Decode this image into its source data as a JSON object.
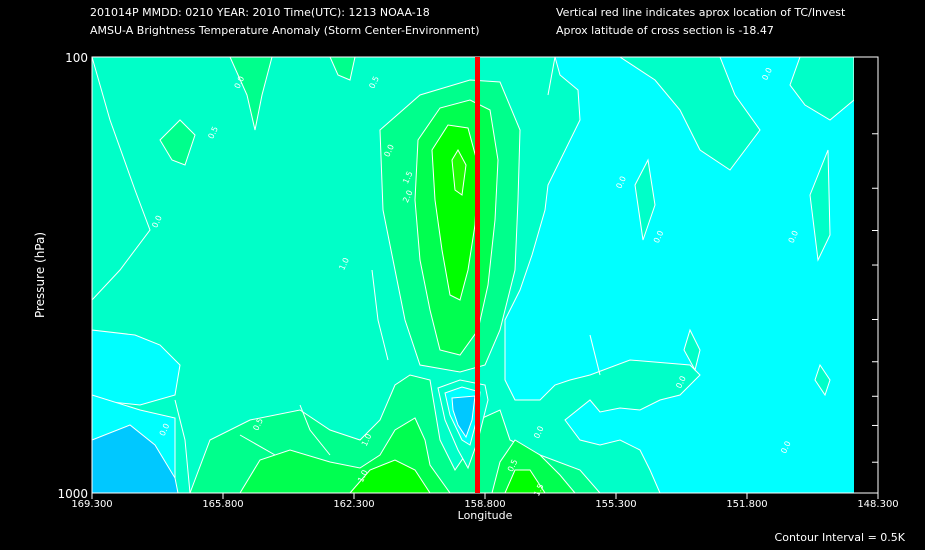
{
  "header": {
    "line1_left": "201014P  MMDD: 0210 YEAR: 2010 Time(UTC): 1213 NOAA-18",
    "line2_left": "AMSU-A Brightness Temperature Anomaly (Storm Center-Environment)",
    "line1_right": "Vertical red line indicates aprox location of TC/Invest",
    "line2_right": "Aprox latitude of cross section is -18.47"
  },
  "footer": {
    "contour_interval": "Contour Interval = 0.5K"
  },
  "colors": {
    "cyan": "#00ffff",
    "deep_sky": "#00c8ff",
    "aqua_green": "#00ffc8",
    "spring_green": "#00ff8c",
    "green": "#00ff50",
    "bright_green": "#00ff00",
    "storm_line": "#ff0000",
    "contour": "#ffffff"
  },
  "chart_data": {
    "type": "heatmap",
    "title": "AMSU-A Brightness Temperature Anomaly (Storm Center-Environment)",
    "xlabel": "Longitude",
    "ylabel": "Pressure (hPa)",
    "x_ticks": [
      "169.300",
      "165.800",
      "162.300",
      "158.800",
      "155.300",
      "151.800",
      "148.300"
    ],
    "x_tick_values": [
      169.3,
      165.8,
      162.3,
      158.8,
      155.3,
      151.8,
      148.3
    ],
    "xlim": [
      169.3,
      148.3
    ],
    "y_ticks": [
      "100",
      "1000"
    ],
    "ylim": [
      100,
      1000
    ],
    "y_scale": "log",
    "y_minor_ticks": [
      150,
      200,
      250,
      300,
      400,
      500,
      600,
      700,
      850
    ],
    "storm_longitude": 159.0,
    "contour_interval_K": 0.5,
    "contour_labels": [
      {
        "text": "0.0",
        "lon": 165.3,
        "p": 115
      },
      {
        "text": "0.0",
        "lon": 161.3,
        "p": 165
      },
      {
        "text": "0.0",
        "lon": 167.5,
        "p": 240
      },
      {
        "text": "0.0",
        "lon": 155.1,
        "p": 195
      },
      {
        "text": "0.0",
        "lon": 154.1,
        "p": 260
      },
      {
        "text": "0.0",
        "lon": 151.2,
        "p": 110
      },
      {
        "text": "0.0",
        "lon": 150.5,
        "p": 260
      },
      {
        "text": "0.0",
        "lon": 150.7,
        "p": 790
      },
      {
        "text": "0.0",
        "lon": 157.3,
        "p": 730
      },
      {
        "text": "0.0",
        "lon": 167.3,
        "p": 720
      },
      {
        "text": "0.0",
        "lon": 153.5,
        "p": 560
      },
      {
        "text": "0.5",
        "lon": 166.0,
        "p": 150
      },
      {
        "text": "0.5",
        "lon": 164.8,
        "p": 700
      },
      {
        "text": "0.5",
        "lon": 161.7,
        "p": 115
      },
      {
        "text": "0.5",
        "lon": 158.0,
        "p": 870
      },
      {
        "text": "1.0",
        "lon": 162.5,
        "p": 300
      },
      {
        "text": "1.0",
        "lon": 161.9,
        "p": 760
      },
      {
        "text": "1.0",
        "lon": 162.0,
        "p": 920
      },
      {
        "text": "1.5",
        "lon": 160.8,
        "p": 190
      },
      {
        "text": "1.5",
        "lon": 157.3,
        "p": 990
      },
      {
        "text": "2.0",
        "lon": 160.8,
        "p": 210
      }
    ]
  }
}
